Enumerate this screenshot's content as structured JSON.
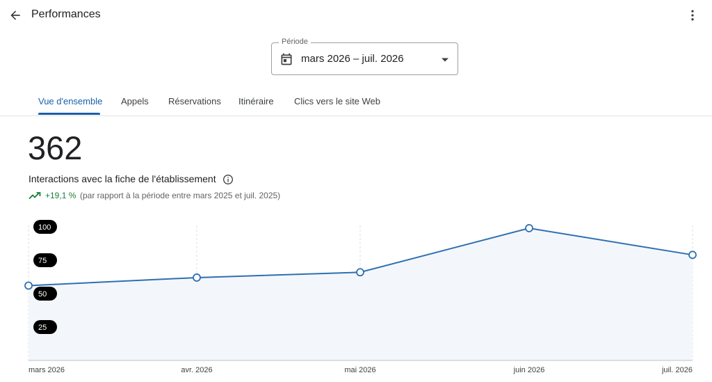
{
  "header": {
    "title": "Performances"
  },
  "period": {
    "label": "Période",
    "value": "mars 2026 – juil. 2026"
  },
  "tabs": [
    {
      "label": "Vue d'ensemble",
      "active": true
    },
    {
      "label": "Appels",
      "active": false
    },
    {
      "label": "Réservations",
      "active": false
    },
    {
      "label": "Itinéraire",
      "active": false
    },
    {
      "label": "Clics vers le site Web",
      "active": false
    }
  ],
  "summary": {
    "total": "362",
    "label": "Interactions avec la fiche de l'établissement",
    "change": "+19,1 %",
    "comparison": "(par rapport à la période entre mars 2025 et juil. 2025)"
  },
  "colors": {
    "accent": "#1a5fa8",
    "line": "#2f6fb0",
    "area": "#f3f7fc",
    "positive": "#188038"
  },
  "icons": {
    "back": "arrow-back-icon",
    "more": "more-vert-icon",
    "calendar": "calendar-icon",
    "dropdown": "dropdown-arrow-icon",
    "info": "info-icon",
    "trend": "trending-up-icon"
  },
  "chart_data": {
    "type": "area",
    "x": [
      "mars 2026",
      "avr. 2026",
      "mai 2026",
      "juin 2026",
      "juil. 2026"
    ],
    "values": [
      56,
      62,
      66,
      99,
      79
    ],
    "y_ticks": [
      100,
      75,
      50,
      25
    ],
    "ylim": [
      0,
      100
    ],
    "grid": "vertical dashed",
    "legend": "none"
  }
}
